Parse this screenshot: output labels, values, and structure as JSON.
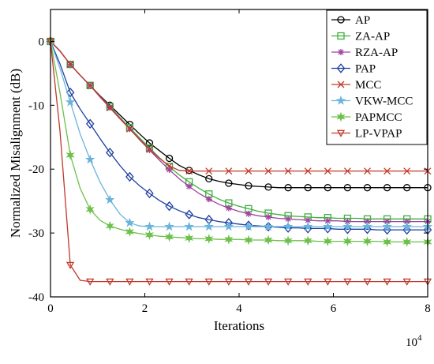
{
  "chart_data": {
    "type": "line",
    "title": "",
    "xlabel": "Iterations",
    "ylabel": "Normalized Misalignment (dB)",
    "x_multiplier_label": "10^4",
    "xlim": [
      0,
      8
    ],
    "ylim": [
      -40,
      5
    ],
    "xticks": [
      0,
      2,
      4,
      6,
      8
    ],
    "yticks": [
      0,
      -10,
      -20,
      -30,
      -40
    ],
    "grid": false,
    "legend_position": "top-right",
    "x": [
      0,
      0.2,
      0.42,
      0.63,
      0.84,
      1.05,
      1.26,
      1.47,
      1.68,
      1.89,
      2.1,
      2.31,
      2.52,
      2.73,
      2.94,
      3.15,
      3.36,
      3.57,
      3.78,
      3.99,
      4.2,
      4.41,
      4.62,
      4.83,
      5.04,
      5.25,
      5.46,
      5.67,
      5.88,
      6.09,
      6.3,
      6.51,
      6.72,
      6.93,
      7.14,
      7.35,
      7.56,
      7.77,
      8.0
    ],
    "series": [
      {
        "name": "AP",
        "color": "#000000",
        "marker": "circle",
        "values": [
          0,
          -1.5,
          -3.6,
          -5.3,
          -6.9,
          -8.5,
          -10.0,
          -11.5,
          -13.0,
          -14.5,
          -15.9,
          -17.1,
          -18.3,
          -19.4,
          -20.2,
          -20.9,
          -21.5,
          -21.9,
          -22.2,
          -22.4,
          -22.6,
          -22.7,
          -22.8,
          -22.9,
          -22.9,
          -22.9,
          -22.9,
          -22.9,
          -22.9,
          -22.9,
          -22.9,
          -22.9,
          -22.9,
          -22.9,
          -22.9,
          -22.9,
          -22.9,
          -22.9,
          -22.9
        ]
      },
      {
        "name": "ZA-AP",
        "color": "#3caf3c",
        "marker": "square",
        "values": [
          0,
          -1.5,
          -3.6,
          -5.3,
          -6.9,
          -8.6,
          -10.2,
          -11.9,
          -13.5,
          -15.1,
          -16.7,
          -18.2,
          -19.6,
          -20.9,
          -22.0,
          -23.0,
          -23.9,
          -24.7,
          -25.3,
          -25.8,
          -26.2,
          -26.6,
          -26.9,
          -27.1,
          -27.3,
          -27.4,
          -27.5,
          -27.6,
          -27.6,
          -27.7,
          -27.7,
          -27.7,
          -27.8,
          -27.8,
          -27.8,
          -27.8,
          -27.8,
          -27.8,
          -27.8
        ]
      },
      {
        "name": "RZA-AP",
        "color": "#a040a0",
        "marker": "asterisk",
        "values": [
          0,
          -1.5,
          -3.6,
          -5.3,
          -6.9,
          -8.6,
          -10.3,
          -12.0,
          -13.7,
          -15.4,
          -17.0,
          -18.6,
          -20.1,
          -21.5,
          -22.7,
          -23.8,
          -24.7,
          -25.5,
          -26.1,
          -26.6,
          -27.0,
          -27.3,
          -27.5,
          -27.7,
          -27.8,
          -27.9,
          -28.0,
          -28.1,
          -28.1,
          -28.1,
          -28.2,
          -28.2,
          -28.2,
          -28.2,
          -28.2,
          -28.2,
          -28.2,
          -28.2,
          -28.2
        ]
      },
      {
        "name": "PAP",
        "color": "#1c3fa0",
        "marker": "diamond",
        "values": [
          0,
          -3.5,
          -8.0,
          -10.6,
          -12.9,
          -15.2,
          -17.4,
          -19.4,
          -21.2,
          -22.6,
          -23.8,
          -24.9,
          -25.8,
          -26.5,
          -27.1,
          -27.6,
          -27.9,
          -28.2,
          -28.4,
          -28.6,
          -28.8,
          -28.9,
          -29.0,
          -29.1,
          -29.2,
          -29.2,
          -29.3,
          -29.3,
          -29.3,
          -29.4,
          -29.4,
          -29.4,
          -29.4,
          -29.5,
          -29.5,
          -29.5,
          -29.5,
          -29.5,
          -29.5
        ]
      },
      {
        "name": "MCC",
        "color": "#c0392b",
        "marker": "x",
        "values": [
          0,
          -1.5,
          -3.6,
          -5.3,
          -6.9,
          -8.7,
          -10.4,
          -12.1,
          -13.7,
          -15.3,
          -16.9,
          -18.3,
          -19.5,
          -20.2,
          -20.3,
          -20.3,
          -20.3,
          -20.3,
          -20.3,
          -20.3,
          -20.3,
          -20.3,
          -20.3,
          -20.3,
          -20.3,
          -20.3,
          -20.3,
          -20.3,
          -20.3,
          -20.3,
          -20.3,
          -20.3,
          -20.3,
          -20.3,
          -20.3,
          -20.3,
          -20.3,
          -20.3,
          -20.3
        ]
      },
      {
        "name": "VKW-MCC",
        "color": "#6ab4dc",
        "marker": "star",
        "values": [
          0,
          -4.2,
          -9.5,
          -14.5,
          -18.5,
          -22.0,
          -24.8,
          -27.0,
          -28.4,
          -28.9,
          -29.0,
          -29.0,
          -29.0,
          -29.0,
          -29.0,
          -29.0,
          -29.0,
          -29.0,
          -29.0,
          -29.0,
          -29.0,
          -29.0,
          -29.0,
          -29.0,
          -29.0,
          -29.0,
          -29.0,
          -29.0,
          -29.0,
          -29.0,
          -29.0,
          -29.0,
          -29.0,
          -29.0,
          -29.0,
          -29.0,
          -29.0,
          -29.0,
          -29.0
        ]
      },
      {
        "name": "PAPMCC",
        "color": "#6dc04b",
        "marker": "star6",
        "values": [
          0,
          -8.0,
          -17.8,
          -23.0,
          -26.3,
          -28.0,
          -28.9,
          -29.4,
          -29.8,
          -30.1,
          -30.3,
          -30.5,
          -30.6,
          -30.7,
          -30.8,
          -30.9,
          -30.9,
          -31.0,
          -31.0,
          -31.0,
          -31.1,
          -31.1,
          -31.1,
          -31.2,
          -31.2,
          -31.2,
          -31.2,
          -31.3,
          -31.3,
          -31.3,
          -31.3,
          -31.3,
          -31.3,
          -31.3,
          -31.4,
          -31.4,
          -31.4,
          -31.4,
          -31.4
        ]
      },
      {
        "name": "LP-VPAP",
        "color": "#c0392b",
        "marker": "triangle-down",
        "values": [
          0,
          -14.0,
          -35.0,
          -37.4,
          -37.6,
          -37.6,
          -37.6,
          -37.6,
          -37.6,
          -37.6,
          -37.6,
          -37.6,
          -37.6,
          -37.6,
          -37.6,
          -37.6,
          -37.6,
          -37.6,
          -37.6,
          -37.6,
          -37.6,
          -37.6,
          -37.6,
          -37.6,
          -37.6,
          -37.6,
          -37.6,
          -37.6,
          -37.6,
          -37.6,
          -37.6,
          -37.6,
          -37.6,
          -37.6,
          -37.6,
          -37.6,
          -37.6,
          -37.6,
          -37.6
        ]
      }
    ]
  }
}
